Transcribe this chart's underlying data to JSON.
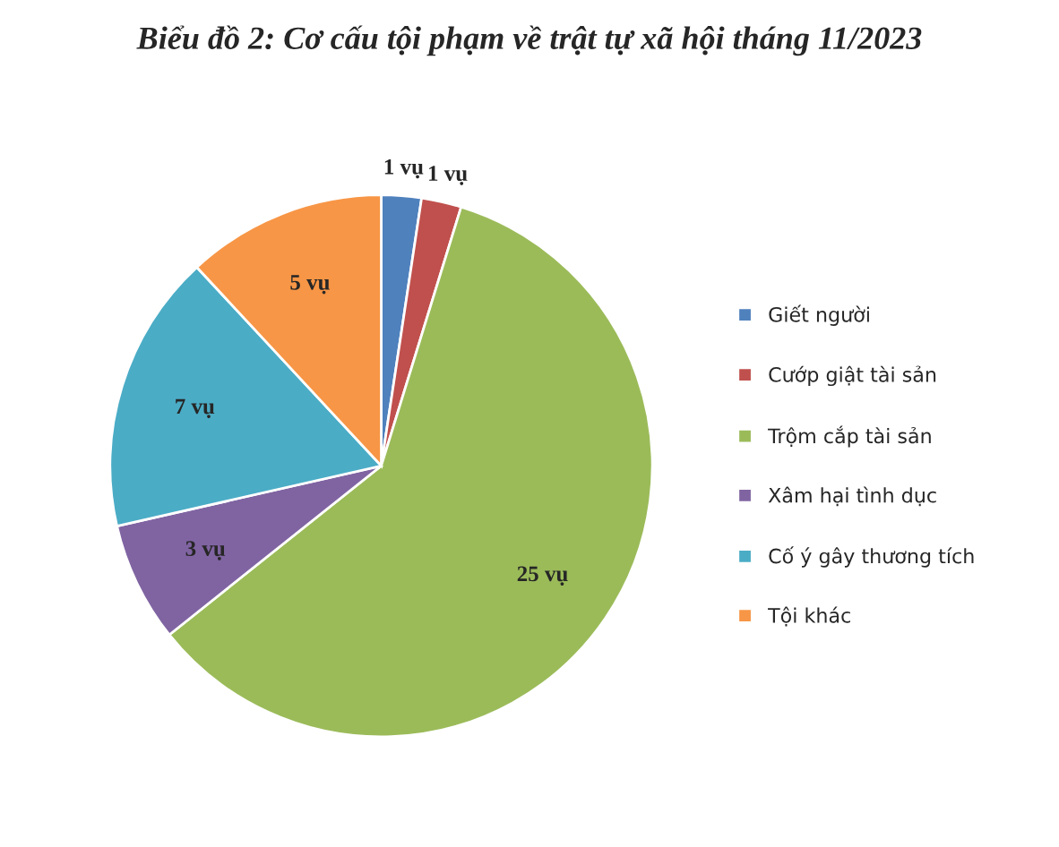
{
  "chart_data": {
    "type": "pie",
    "title": "Biểu đồ 2: Cơ cấu tội phạm về trật tự xã hội tháng 11/2023",
    "categories": [
      "Giết người",
      "Cướp giật tài sản",
      "Trộm cắp tài sản",
      "Xâm hại tình dục",
      "Cố ý gây thương tích",
      "Tội khác"
    ],
    "values": [
      1,
      1,
      25,
      3,
      7,
      5
    ],
    "colors": [
      "#4f81bd",
      "#c0504d",
      "#9bbb59",
      "#8064a2",
      "#4bacc6",
      "#f79646"
    ],
    "value_labels": [
      "1 vụ",
      "1 vụ",
      "25 vụ",
      "3 vụ",
      "7 vụ",
      "5 vụ"
    ],
    "legend": "right"
  }
}
